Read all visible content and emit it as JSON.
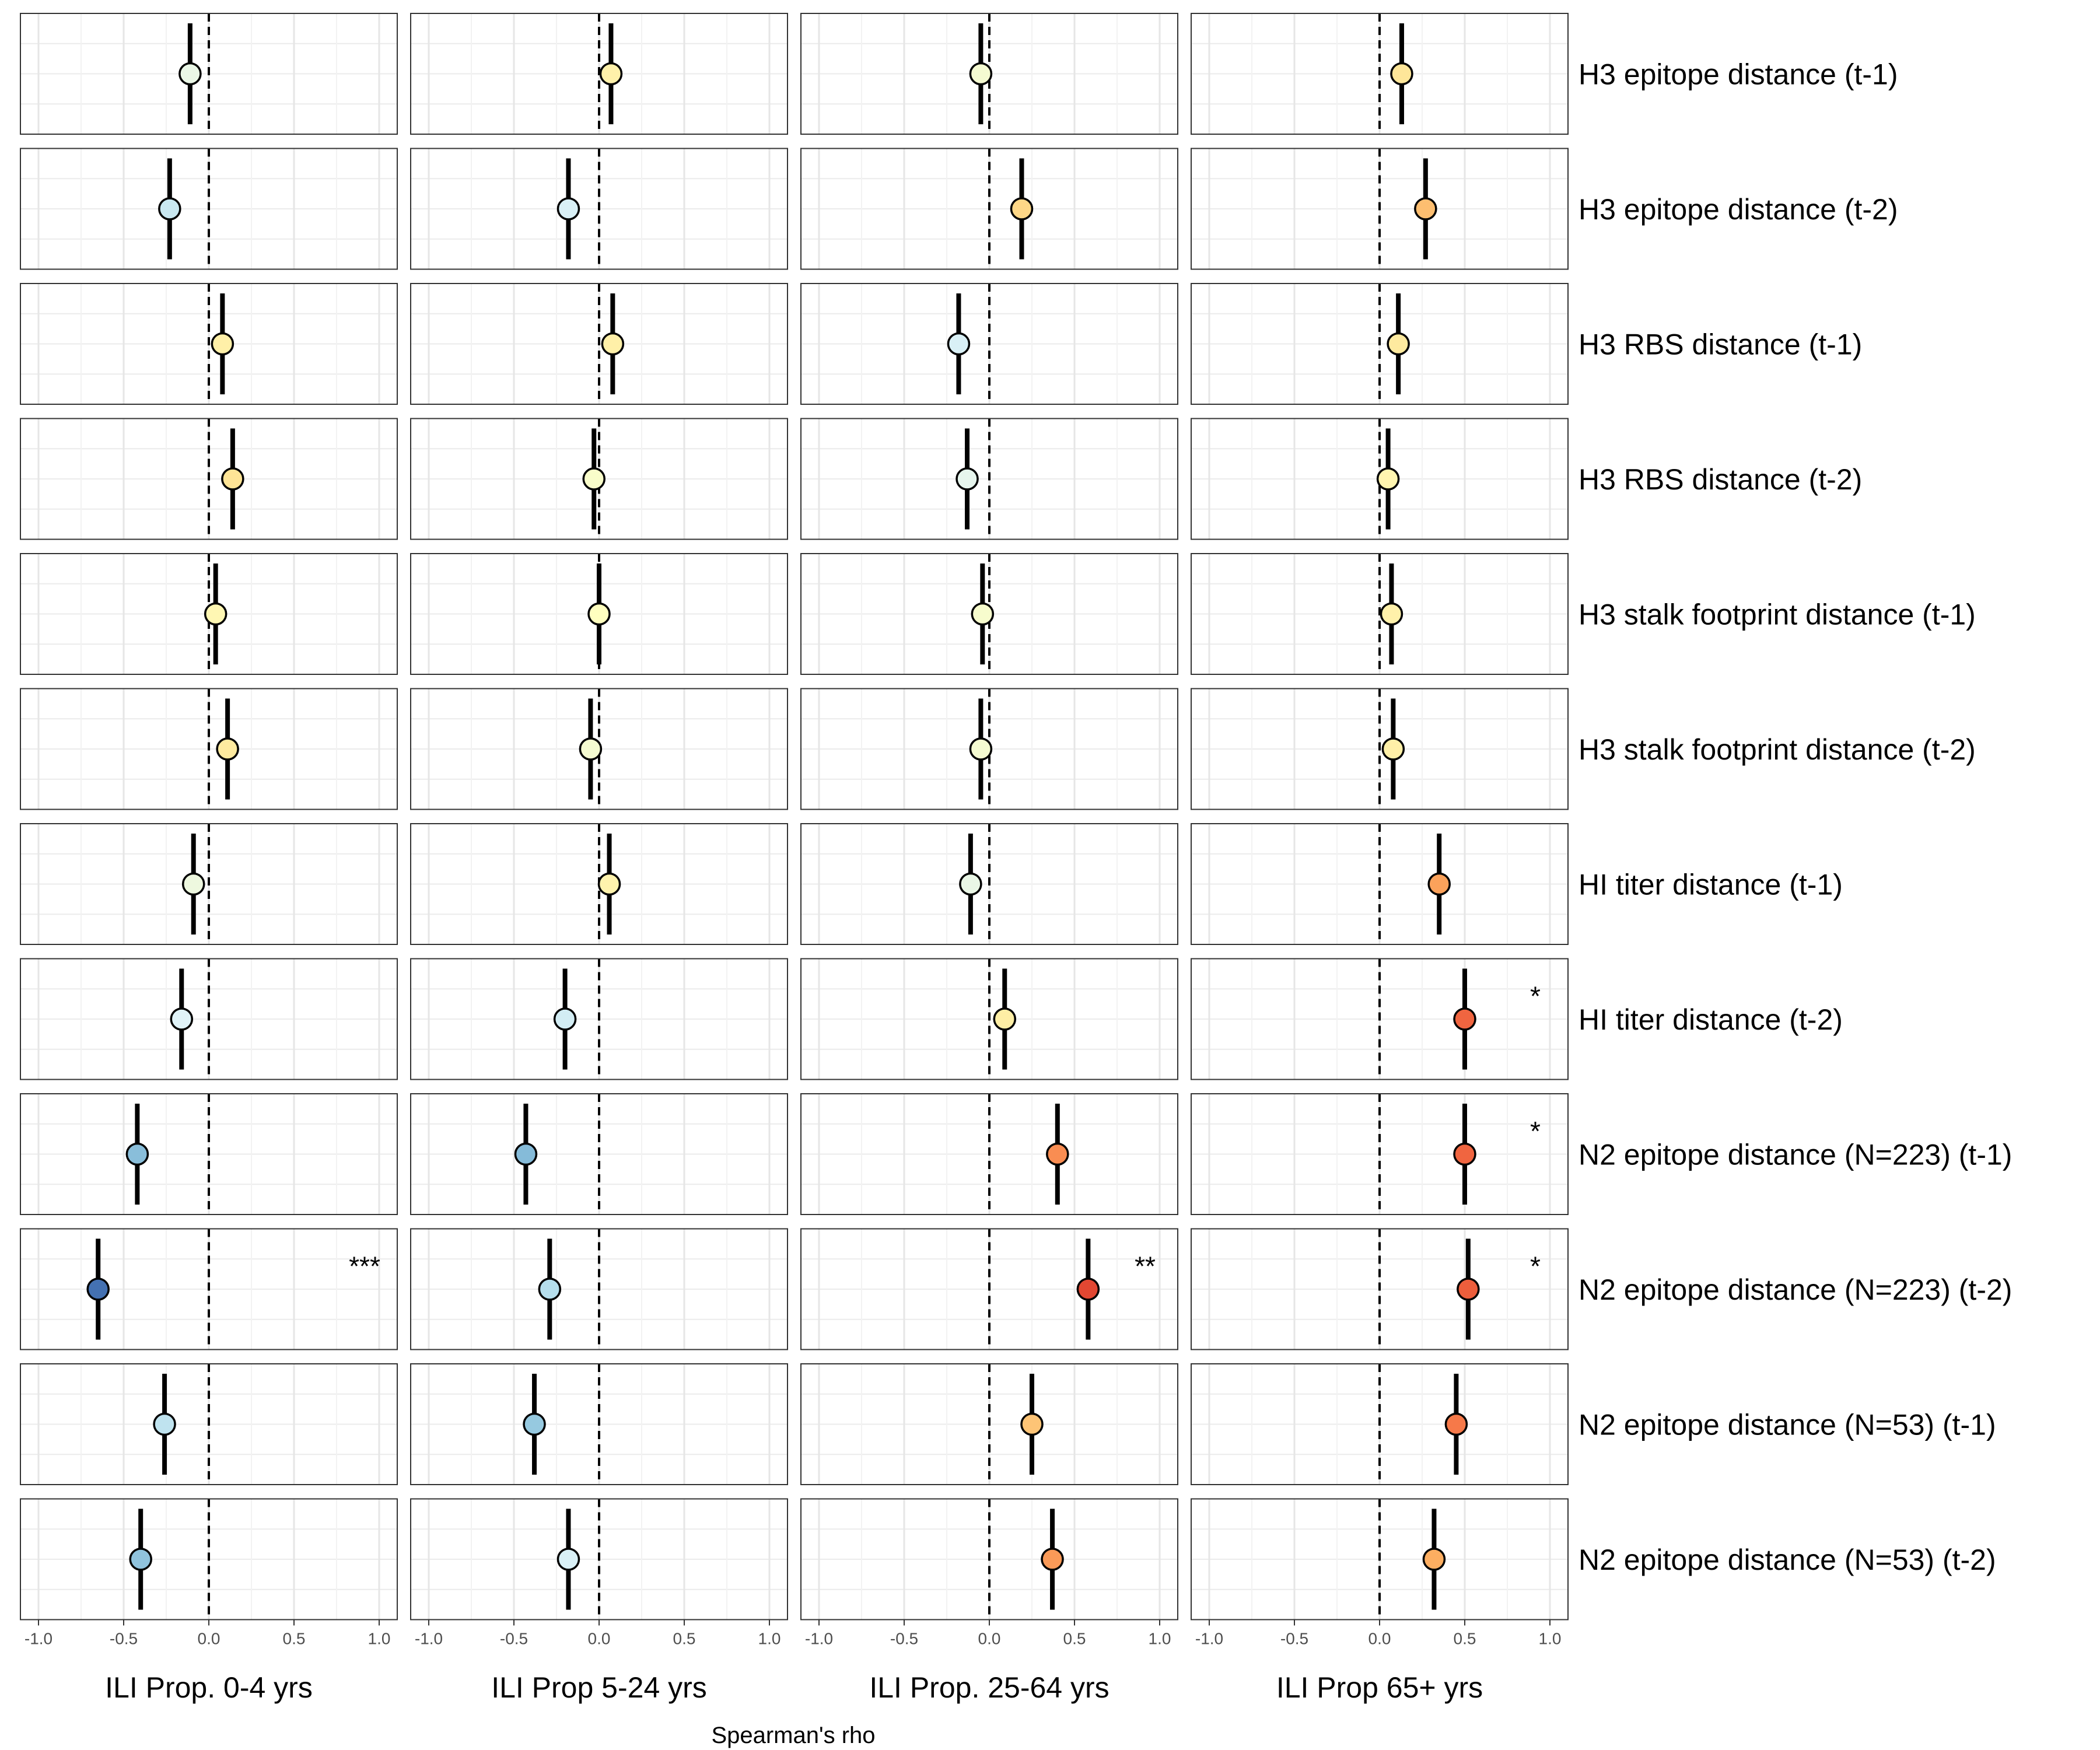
{
  "chart_data": {
    "type": "scatter",
    "subtype": "faceted-forest-plot",
    "title": "",
    "xlabel": "Spearman's rho",
    "xlim": [
      -1.0,
      1.0
    ],
    "xticks": [
      "-1.0",
      "-0.5",
      "0.0",
      "0.5",
      "1.0"
    ],
    "reference_line": 0,
    "grid": true,
    "color_scale": {
      "domain": [
        -0.8,
        0.8
      ],
      "colors": [
        "#313695",
        "#4575b4",
        "#74add1",
        "#abd9e9",
        "#e0f3f8",
        "#ffffbf",
        "#fee090",
        "#fdae61",
        "#f46d43",
        "#d73027",
        "#a50026"
      ]
    },
    "columns": [
      "ILI Prop. 0-4 yrs",
      "ILI Prop 5-24 yrs",
      "ILI Prop. 25-64 yrs",
      "ILI Prop 65+ yrs"
    ],
    "rows": [
      "H3 epitope distance (t-1)",
      "H3 epitope distance (t-2)",
      "H3 RBS distance (t-1)",
      "H3 RBS distance (t-2)",
      "H3 stalk footprint distance (t-1)",
      "H3 stalk footprint distance (t-2)",
      "HI titer distance (t-1)",
      "HI titer distance (t-2)",
      "N2 epitope distance (N=223) (t-1)",
      "N2 epitope distance (N=223) (t-2)",
      "N2 epitope distance (N=53) (t-1)",
      "N2 epitope distance (N=53) (t-2)"
    ],
    "rho": [
      [
        -0.11,
        0.07,
        -0.05,
        0.13
      ],
      [
        -0.23,
        -0.18,
        0.19,
        0.27
      ],
      [
        0.08,
        0.08,
        -0.18,
        0.11
      ],
      [
        0.14,
        -0.03,
        -0.13,
        0.05
      ],
      [
        0.04,
        0.0,
        -0.04,
        0.07
      ],
      [
        0.11,
        -0.05,
        -0.05,
        0.08
      ],
      [
        -0.09,
        0.06,
        -0.11,
        0.35
      ],
      [
        -0.16,
        -0.2,
        0.09,
        0.5
      ],
      [
        -0.42,
        -0.43,
        0.4,
        0.5
      ],
      [
        -0.65,
        -0.29,
        0.58,
        0.52
      ],
      [
        -0.26,
        -0.38,
        0.25,
        0.45
      ],
      [
        -0.4,
        -0.18,
        0.37,
        0.32
      ]
    ],
    "significance": [
      [
        "",
        "",
        "",
        ""
      ],
      [
        "",
        "",
        "",
        ""
      ],
      [
        "",
        "",
        "",
        ""
      ],
      [
        "",
        "",
        "",
        ""
      ],
      [
        "",
        "",
        "",
        ""
      ],
      [
        "",
        "",
        "",
        ""
      ],
      [
        "",
        "",
        "",
        ""
      ],
      [
        "",
        "",
        "",
        "*"
      ],
      [
        "",
        "",
        "",
        "*"
      ],
      [
        "***",
        "",
        "**",
        "*"
      ],
      [
        "",
        "",
        "",
        ""
      ],
      [
        "",
        "",
        "",
        ""
      ]
    ]
  }
}
